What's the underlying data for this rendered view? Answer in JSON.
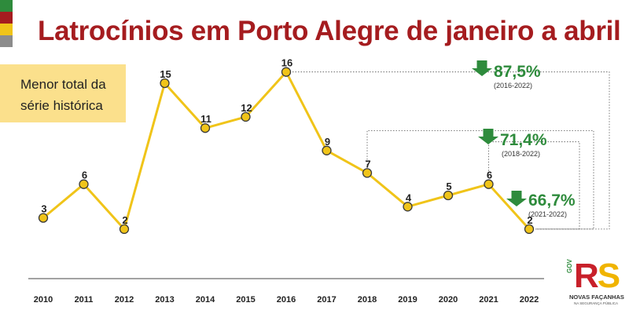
{
  "header": {
    "title": "Latrocínios em Porto Alegre de janeiro a abril",
    "stripe_colors": [
      "#2e8b3c",
      "#a51c1f",
      "#f0c419",
      "#8c8c8c"
    ]
  },
  "note": {
    "line1": "Menor total da",
    "line2": "série histórica"
  },
  "chart_data": {
    "type": "line",
    "title": "Latrocínios em Porto Alegre de janeiro a abril",
    "x": [
      "2010",
      "2011",
      "2012",
      "2013",
      "2014",
      "2015",
      "2016",
      "2017",
      "2018",
      "2019",
      "2020",
      "2021",
      "2022"
    ],
    "values": [
      3,
      6,
      2,
      15,
      11,
      12,
      16,
      9,
      7,
      4,
      5,
      6,
      2
    ],
    "xlabel": "",
    "ylabel": "",
    "ylim": [
      0,
      17
    ],
    "grid": false,
    "line_color": "#f0c419",
    "annotations": [
      {
        "text": "87,5%",
        "period": "(2016-2022)",
        "from": "2016",
        "to": "2022",
        "direction": "down"
      },
      {
        "text": "71,4%",
        "period": "(2018-2022)",
        "from": "2018",
        "to": "2022",
        "direction": "down"
      },
      {
        "text": "66,7%",
        "period": "(2021-2022)",
        "from": "2021",
        "to": "2022",
        "direction": "down"
      }
    ],
    "annotation_color": "#2e8b3c"
  },
  "logo": {
    "gov": "GOV",
    "r": "R",
    "s": "S",
    "tagline": "NOVAS FAÇANHAS",
    "subline": "NA SEGURANÇA PÚBLICA"
  }
}
